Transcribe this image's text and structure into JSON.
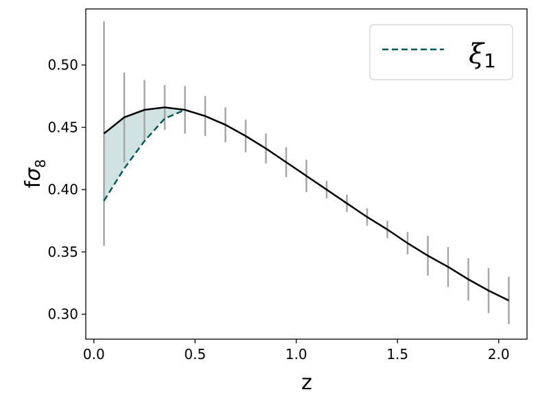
{
  "chart_data": {
    "type": "line",
    "title": "",
    "xlabel": "z",
    "ylabel": "fσ8",
    "xlim": [
      -0.04,
      2.14
    ],
    "ylim": [
      0.28,
      0.545
    ],
    "xticks": [
      0.0,
      0.5,
      1.0,
      1.5,
      2.0
    ],
    "xtick_labels": [
      "0.0",
      "0.5",
      "1.0",
      "1.5",
      "2.0"
    ],
    "yticks": [
      0.3,
      0.35,
      0.4,
      0.45,
      0.5
    ],
    "ytick_labels": [
      "0.30",
      "0.35",
      "0.40",
      "0.45",
      "0.50"
    ],
    "grid": false,
    "legend_position": "top-right",
    "x": [
      0.05,
      0.15,
      0.25,
      0.35,
      0.45,
      0.55,
      0.65,
      0.75,
      0.85,
      0.95,
      1.05,
      1.15,
      1.25,
      1.35,
      1.45,
      1.55,
      1.65,
      1.75,
      1.85,
      1.95,
      2.05
    ],
    "series": [
      {
        "name": "",
        "style": "solid",
        "color": "#000000",
        "values": [
          0.445,
          0.458,
          0.464,
          0.466,
          0.464,
          0.459,
          0.452,
          0.443,
          0.433,
          0.422,
          0.411,
          0.4,
          0.389,
          0.378,
          0.368,
          0.357,
          0.347,
          0.338,
          0.328,
          0.319,
          0.311
        ],
        "error": [
          0.09,
          0.036,
          0.024,
          0.018,
          0.019,
          0.016,
          0.014,
          0.013,
          0.012,
          0.012,
          0.013,
          0.007,
          0.007,
          0.007,
          0.007,
          0.009,
          0.016,
          0.016,
          0.017,
          0.018,
          0.019
        ]
      },
      {
        "name": "ξ1",
        "style": "dashed",
        "color": "#005a5a",
        "x": [
          0.05,
          0.15,
          0.25,
          0.35,
          0.45
        ],
        "values": [
          0.391,
          0.417,
          0.439,
          0.457,
          0.464
        ]
      }
    ],
    "fill_between": {
      "x": [
        0.05,
        0.15,
        0.25,
        0.35,
        0.45
      ],
      "color": "#cfe0e0"
    },
    "errorbar_color": "#a6a6a6",
    "legend": {
      "label_base": "ξ",
      "label_sub": "1"
    }
  }
}
